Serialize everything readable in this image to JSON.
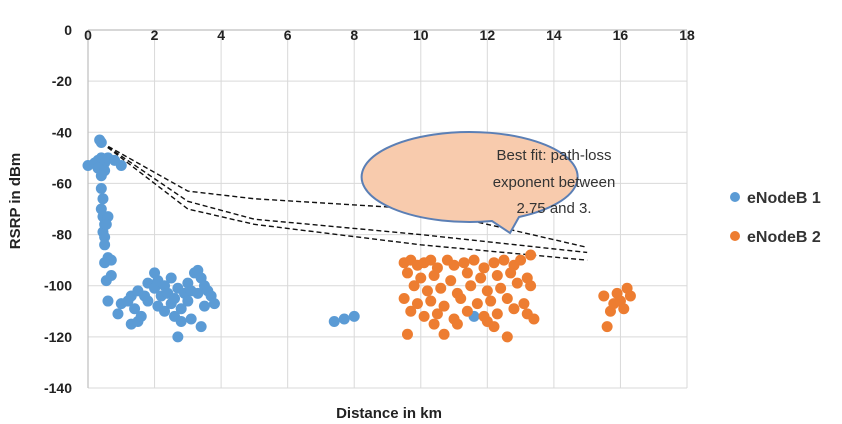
{
  "chart_data": {
    "type": "scatter",
    "xlabel": "Distance in km",
    "ylabel": "RSRP in dBm",
    "xlim": [
      0,
      18
    ],
    "ylim": [
      -140,
      0
    ],
    "x_ticks": [
      "0",
      "2",
      "4",
      "6",
      "8",
      "10",
      "12",
      "14",
      "16",
      "18"
    ],
    "y_ticks": [
      "0",
      "-20",
      "-40",
      "-60",
      "-80",
      "-100",
      "-120",
      "-140"
    ],
    "x_axis_position": "top",
    "grid": true,
    "legend_position": "right",
    "colors": {
      "series1": "#5b9bd5",
      "series2": "#ed7d31",
      "fit_lines": "#111111",
      "callout_fill": "#f8cbad",
      "callout_stroke": "#5b7fb5",
      "grid": "#d9d9d9"
    },
    "callout": {
      "lines": [
        "Best fit: path-loss",
        "exponent between",
        "2.75 and 3."
      ]
    },
    "fit_lines": [
      {
        "x": [
          0.4,
          3,
          5,
          10,
          15
        ],
        "y": [
          -44,
          -63,
          -66,
          -70,
          -85
        ]
      },
      {
        "x": [
          0.4,
          3,
          5,
          10,
          15
        ],
        "y": [
          -44,
          -67,
          -74,
          -80,
          -87
        ]
      },
      {
        "x": [
          0.4,
          3,
          5,
          10,
          15
        ],
        "y": [
          -44,
          -70,
          -76,
          -84,
          -90
        ]
      }
    ],
    "series": [
      {
        "name": "eNodeB 1",
        "points": [
          [
            0,
            -53
          ],
          [
            0.2,
            -52
          ],
          [
            0.3,
            -51
          ],
          [
            0.4,
            -50
          ],
          [
            0.5,
            -52
          ],
          [
            0.6,
            -50
          ],
          [
            0.3,
            -54
          ],
          [
            0.5,
            -55
          ],
          [
            0.4,
            -44
          ],
          [
            0.35,
            -43
          ],
          [
            1.0,
            -53
          ],
          [
            0.8,
            -51
          ],
          [
            0.4,
            -57
          ],
          [
            0.4,
            -62
          ],
          [
            0.45,
            -66
          ],
          [
            0.4,
            -70
          ],
          [
            0.45,
            -73
          ],
          [
            0.5,
            -76
          ],
          [
            0.45,
            -79
          ],
          [
            0.5,
            -81
          ],
          [
            0.6,
            -73
          ],
          [
            0.55,
            -76
          ],
          [
            0.5,
            -84
          ],
          [
            0.6,
            -89
          ],
          [
            0.5,
            -91
          ],
          [
            0.7,
            -90
          ],
          [
            0.55,
            -98
          ],
          [
            0.7,
            -96
          ],
          [
            0.6,
            -106
          ],
          [
            0.9,
            -111
          ],
          [
            1.0,
            -107
          ],
          [
            1.2,
            -106
          ],
          [
            1.3,
            -104
          ],
          [
            1.4,
            -109
          ],
          [
            1.3,
            -115
          ],
          [
            1.5,
            -114
          ],
          [
            1.6,
            -112
          ],
          [
            1.5,
            -102
          ],
          [
            1.7,
            -104
          ],
          [
            1.8,
            -99
          ],
          [
            1.8,
            -106
          ],
          [
            2.0,
            -101
          ],
          [
            2.0,
            -95
          ],
          [
            2.1,
            -98
          ],
          [
            2.1,
            -108
          ],
          [
            2.2,
            -104
          ],
          [
            2.3,
            -100
          ],
          [
            2.3,
            -110
          ],
          [
            2.4,
            -103
          ],
          [
            2.5,
            -107
          ],
          [
            2.5,
            -97
          ],
          [
            2.6,
            -105
          ],
          [
            2.6,
            -112
          ],
          [
            2.7,
            -101
          ],
          [
            2.8,
            -114
          ],
          [
            2.8,
            -109
          ],
          [
            2.9,
            -103
          ],
          [
            3.0,
            -99
          ],
          [
            3.0,
            -106
          ],
          [
            3.1,
            -102
          ],
          [
            3.1,
            -113
          ],
          [
            3.2,
            -95
          ],
          [
            3.3,
            -94
          ],
          [
            3.3,
            -103
          ],
          [
            3.4,
            -97
          ],
          [
            3.5,
            -100
          ],
          [
            3.5,
            -108
          ],
          [
            3.6,
            -102
          ],
          [
            3.7,
            -104
          ],
          [
            3.8,
            -107
          ],
          [
            2.7,
            -120
          ],
          [
            3.4,
            -116
          ],
          [
            7.4,
            -114
          ],
          [
            7.7,
            -113
          ],
          [
            8.0,
            -112
          ],
          [
            11.6,
            -112
          ]
        ]
      },
      {
        "name": "eNodeB 2",
        "points": [
          [
            9.5,
            -91
          ],
          [
            9.7,
            -90
          ],
          [
            9.9,
            -92
          ],
          [
            10.1,
            -91
          ],
          [
            10.3,
            -90
          ],
          [
            10.5,
            -93
          ],
          [
            10.8,
            -90
          ],
          [
            11.0,
            -92
          ],
          [
            11.3,
            -91
          ],
          [
            11.6,
            -90
          ],
          [
            11.9,
            -93
          ],
          [
            12.2,
            -91
          ],
          [
            12.5,
            -90
          ],
          [
            12.8,
            -92
          ],
          [
            13.0,
            -90
          ],
          [
            13.3,
            -88
          ],
          [
            9.6,
            -95
          ],
          [
            10.0,
            -97
          ],
          [
            10.4,
            -96
          ],
          [
            10.9,
            -98
          ],
          [
            11.4,
            -95
          ],
          [
            11.8,
            -97
          ],
          [
            12.3,
            -96
          ],
          [
            12.7,
            -95
          ],
          [
            13.2,
            -97
          ],
          [
            9.8,
            -100
          ],
          [
            10.2,
            -102
          ],
          [
            10.6,
            -101
          ],
          [
            11.1,
            -103
          ],
          [
            11.5,
            -100
          ],
          [
            12.0,
            -102
          ],
          [
            12.4,
            -101
          ],
          [
            12.9,
            -99
          ],
          [
            13.3,
            -100
          ],
          [
            9.5,
            -105
          ],
          [
            9.9,
            -107
          ],
          [
            10.3,
            -106
          ],
          [
            10.7,
            -108
          ],
          [
            11.2,
            -105
          ],
          [
            11.7,
            -107
          ],
          [
            12.1,
            -106
          ],
          [
            12.6,
            -105
          ],
          [
            13.1,
            -107
          ],
          [
            9.7,
            -110
          ],
          [
            10.1,
            -112
          ],
          [
            10.5,
            -111
          ],
          [
            11.0,
            -113
          ],
          [
            11.4,
            -110
          ],
          [
            11.9,
            -112
          ],
          [
            12.3,
            -111
          ],
          [
            12.8,
            -109
          ],
          [
            13.2,
            -111
          ],
          [
            9.6,
            -119
          ],
          [
            10.7,
            -119
          ],
          [
            11.1,
            -115
          ],
          [
            12.0,
            -114
          ],
          [
            12.6,
            -120
          ],
          [
            12.2,
            -116
          ],
          [
            10.4,
            -115
          ],
          [
            13.4,
            -113
          ],
          [
            15.5,
            -104
          ],
          [
            15.6,
            -116
          ],
          [
            15.7,
            -110
          ],
          [
            15.8,
            -107
          ],
          [
            15.9,
            -103
          ],
          [
            16.0,
            -106
          ],
          [
            16.1,
            -109
          ],
          [
            16.2,
            -101
          ],
          [
            16.3,
            -104
          ]
        ]
      }
    ]
  }
}
